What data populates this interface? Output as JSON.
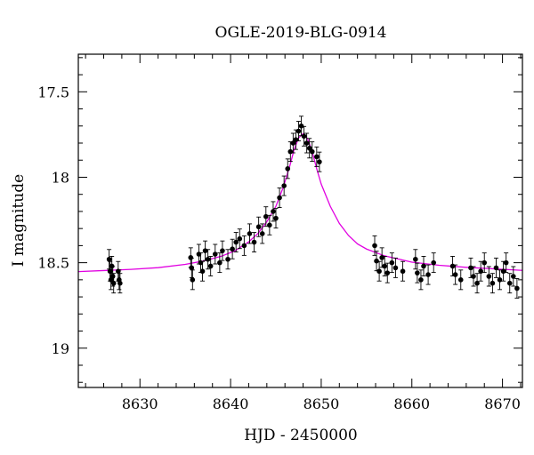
{
  "chart_data": {
    "type": "scatter",
    "title": "OGLE-2019-BLG-0914",
    "xlabel": "HJD - 2450000",
    "ylabel": "I magnitude",
    "xlim": [
      8623.2,
      8672.2
    ],
    "ylim": [
      19.23,
      17.28
    ],
    "y_inverted": true,
    "grid": false,
    "legend": "none",
    "x_ticks": [
      8630,
      8640,
      8650,
      8660,
      8670
    ],
    "y_ticks": [
      17.5,
      18,
      18.5,
      19
    ],
    "colors": {
      "points": "#000000",
      "model": "#e100e1",
      "axes": "#000000"
    },
    "series": [
      {
        "kind": "points",
        "x": [
          8626.6,
          8626.7,
          8626.8,
          8626.9,
          8627.0,
          8627.1,
          8627.6,
          8627.7,
          8627.8,
          8635.6,
          8635.7,
          8635.8,
          8636.5,
          8636.7,
          8636.9,
          8637.2,
          8637.5,
          8637.8,
          8638.3,
          8638.8,
          8639.1,
          8639.7,
          8640.2,
          8640.6,
          8641.0,
          8641.5,
          8642.1,
          8642.6,
          8643.1,
          8643.5,
          8643.9,
          8644.3,
          8644.7,
          8645.0,
          8645.4,
          8645.9,
          8646.3,
          8646.6,
          8646.9,
          8647.2,
          8647.5,
          8647.8,
          8648.1,
          8648.4,
          8648.7,
          8649.0,
          8649.5,
          8649.8,
          8655.9,
          8656.1,
          8656.4,
          8656.7,
          8657.0,
          8657.3,
          8657.8,
          8658.2,
          8659.0,
          8660.4,
          8660.6,
          8661.0,
          8661.3,
          8661.8,
          8662.4,
          8664.5,
          8664.8,
          8665.4,
          8666.5,
          8666.8,
          8667.2,
          8667.6,
          8668.0,
          8668.5,
          8668.9,
          8669.3,
          8669.7,
          8670.1,
          8670.4,
          8670.8,
          8671.2,
          8671.6
        ],
        "y": [
          18.48,
          18.55,
          18.6,
          18.52,
          18.58,
          18.62,
          18.55,
          18.6,
          18.62,
          18.47,
          18.53,
          18.6,
          18.45,
          18.5,
          18.55,
          18.43,
          18.48,
          18.52,
          18.45,
          18.5,
          18.43,
          18.48,
          18.42,
          18.38,
          18.36,
          18.4,
          18.33,
          18.38,
          18.29,
          18.33,
          18.23,
          18.28,
          18.2,
          18.24,
          18.12,
          18.05,
          17.95,
          17.85,
          17.8,
          17.78,
          17.73,
          17.7,
          17.76,
          17.8,
          17.83,
          17.85,
          17.88,
          17.91,
          18.4,
          18.49,
          18.55,
          18.47,
          18.52,
          18.56,
          18.5,
          18.53,
          18.55,
          18.48,
          18.56,
          18.6,
          18.52,
          18.57,
          18.5,
          18.52,
          18.57,
          18.6,
          18.53,
          18.58,
          18.62,
          18.55,
          18.5,
          18.58,
          18.62,
          18.53,
          18.6,
          18.55,
          18.5,
          18.62,
          18.58,
          18.65
        ]
      },
      {
        "kind": "model",
        "x": [
          8623.2,
          8626,
          8629,
          8632,
          8635,
          8637,
          8639,
          8640.5,
          8642,
          8643,
          8644,
          8645,
          8645.8,
          8646.5,
          8647,
          8647.5,
          8648,
          8648.5,
          8649,
          8649.5,
          8650,
          8651,
          8652,
          8653,
          8654,
          8655,
          8657,
          8660,
          8663,
          8666,
          8669,
          8672.2
        ],
        "y": [
          18.552,
          18.546,
          18.539,
          18.529,
          18.51,
          18.49,
          18.462,
          18.43,
          18.378,
          18.33,
          18.26,
          18.17,
          18.06,
          17.94,
          17.84,
          17.77,
          17.745,
          17.775,
          17.85,
          17.95,
          18.04,
          18.17,
          18.27,
          18.34,
          18.39,
          18.42,
          18.46,
          18.497,
          18.515,
          18.527,
          18.536,
          18.545
        ]
      }
    ]
  }
}
